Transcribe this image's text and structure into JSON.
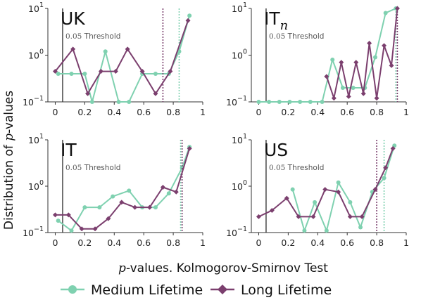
{
  "figure": {
    "ylabel": "Distribution of p-values",
    "xlabel": "p-values. Kolmogorov-Smirnov Test",
    "legend": [
      {
        "label": "Medium Lifetime",
        "color": "#7fd1b0",
        "marker": "circle"
      },
      {
        "label": "Long Lifetime",
        "color": "#7b3f6e",
        "marker": "diamond"
      }
    ]
  },
  "chart_data": [
    {
      "type": "line",
      "title": "UK",
      "title_sub": "",
      "xlim": [
        -0.05,
        1.0
      ],
      "ylim": [
        0.1,
        10
      ],
      "yscale": "log",
      "xticks": [
        "0",
        "0.2",
        "0.4",
        "0.6",
        "0.8",
        "1"
      ],
      "yticks": [
        "10^-1",
        "10^0",
        "10^1"
      ],
      "threshold": {
        "x": 0.05,
        "label": "0.05 Threshold"
      },
      "series": [
        {
          "name": "Medium Lifetime",
          "color": "#7fd1b0",
          "x": [
            0.02,
            0.11,
            0.2,
            0.25,
            0.34,
            0.43,
            0.5,
            0.59,
            0.68,
            0.77,
            0.84,
            0.91
          ],
          "y": [
            0.4,
            0.4,
            0.4,
            0.1,
            1.2,
            0.1,
            0.1,
            0.4,
            0.4,
            0.4,
            1.2,
            7.0
          ],
          "vline": 0.84
        },
        {
          "name": "Long Lifetime",
          "color": "#7b3f6e",
          "x": [
            0.0,
            0.12,
            0.22,
            0.31,
            0.41,
            0.49,
            0.59,
            0.68,
            0.78,
            0.9
          ],
          "y": [
            0.45,
            1.35,
            0.15,
            0.45,
            0.45,
            1.35,
            0.45,
            0.15,
            0.45,
            5.5
          ],
          "vline": 0.73
        }
      ]
    },
    {
      "type": "line",
      "title": "IT",
      "title_sub": "n",
      "xlim": [
        -0.05,
        1.0
      ],
      "ylim": [
        0.1,
        10
      ],
      "yscale": "log",
      "xticks": [
        "0",
        "0.2",
        "0.4",
        "0.6",
        "0.8",
        "1"
      ],
      "yticks": [
        "10^-1",
        "10^0",
        "10^1"
      ],
      "threshold": {
        "x": 0.05,
        "label": "0.05 Threshold"
      },
      "series": [
        {
          "name": "Medium Lifetime",
          "color": "#7fd1b0",
          "x": [
            0.0,
            0.07,
            0.14,
            0.21,
            0.28,
            0.35,
            0.43,
            0.5,
            0.57,
            0.64,
            0.72,
            0.79,
            0.86,
            0.93
          ],
          "y": [
            0.1,
            0.1,
            0.1,
            0.1,
            0.1,
            0.1,
            0.1,
            0.8,
            0.2,
            0.2,
            0.2,
            0.9,
            8.0,
            10.0
          ],
          "vline": 0.93
        },
        {
          "name": "Long Lifetime",
          "color": "#7b3f6e",
          "x": [
            0.46,
            0.51,
            0.56,
            0.61,
            0.66,
            0.71,
            0.75,
            0.8,
            0.85,
            0.9,
            0.94
          ],
          "y": [
            0.35,
            0.12,
            0.7,
            0.13,
            0.7,
            0.15,
            1.8,
            0.12,
            1.6,
            0.6,
            10.0
          ],
          "vline": 0.94
        }
      ]
    },
    {
      "type": "line",
      "title": "IT",
      "title_sub": "",
      "xlim": [
        -0.05,
        1.0
      ],
      "ylim": [
        0.1,
        10
      ],
      "yscale": "log",
      "xticks": [
        "0",
        "0.2",
        "0.4",
        "0.6",
        "0.8",
        "1"
      ],
      "yticks": [
        "10^-1",
        "10^0",
        "10^1"
      ],
      "threshold": {
        "x": 0.05,
        "label": "0.05 Threshold"
      },
      "series": [
        {
          "name": "Medium Lifetime",
          "color": "#7fd1b0",
          "x": [
            0.02,
            0.11,
            0.2,
            0.3,
            0.39,
            0.5,
            0.59,
            0.68,
            0.77,
            0.86,
            0.91
          ],
          "y": [
            0.18,
            0.11,
            0.35,
            0.35,
            0.6,
            0.8,
            0.35,
            0.35,
            0.7,
            2.5,
            7.0
          ],
          "vline": 0.85
        },
        {
          "name": "Long Lifetime",
          "color": "#7b3f6e",
          "x": [
            0.0,
            0.09,
            0.18,
            0.27,
            0.36,
            0.45,
            0.54,
            0.64,
            0.73,
            0.82,
            0.91
          ],
          "y": [
            0.24,
            0.24,
            0.12,
            0.12,
            0.2,
            0.45,
            0.35,
            0.35,
            0.95,
            0.75,
            6.5
          ],
          "vline": 0.86
        }
      ]
    },
    {
      "type": "line",
      "title": "US",
      "title_sub": "",
      "xlim": [
        -0.05,
        1.0
      ],
      "ylim": [
        0.1,
        10
      ],
      "yscale": "log",
      "xticks": [
        "0",
        "0.2",
        "0.4",
        "0.6",
        "0.8",
        "1"
      ],
      "yticks": [
        "10^-1",
        "10^0",
        "10^1"
      ],
      "threshold": {
        "x": 0.05,
        "label": "0.05 Threshold"
      },
      "series": [
        {
          "name": "Medium Lifetime",
          "color": "#7fd1b0",
          "x": [
            0.23,
            0.31,
            0.38,
            0.46,
            0.54,
            0.62,
            0.69,
            0.77,
            0.85,
            0.92
          ],
          "y": [
            0.85,
            0.11,
            0.45,
            0.11,
            1.2,
            0.45,
            0.13,
            0.75,
            1.5,
            7.5
          ],
          "vline": 0.85
        },
        {
          "name": "Long Lifetime",
          "color": "#7b3f6e",
          "x": [
            0.0,
            0.09,
            0.19,
            0.27,
            0.37,
            0.45,
            0.54,
            0.62,
            0.7,
            0.79,
            0.86,
            0.91
          ],
          "y": [
            0.22,
            0.3,
            0.55,
            0.22,
            0.22,
            0.85,
            0.75,
            0.22,
            0.22,
            0.85,
            2.5,
            6.5
          ],
          "vline": 0.8
        }
      ]
    }
  ]
}
